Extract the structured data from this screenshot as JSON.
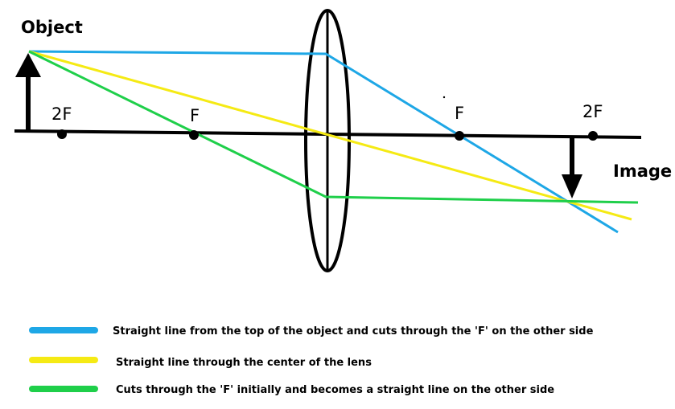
{
  "labels": {
    "object": "Object",
    "image": "Image",
    "focal_left": "F",
    "double_focal_left": "2F",
    "focal_right": "F",
    "double_focal_right": "2F"
  },
  "colors": {
    "axis": "#000000",
    "lens": "#000000",
    "ray_parallel": "#1ea7e6",
    "ray_center": "#f5ea14",
    "ray_focal": "#1fcf4a"
  },
  "legend": [
    {
      "color": "#1ea7e6",
      "text": "Straight line from the top of the object and cuts through the 'F' on the other side"
    },
    {
      "color": "#f5ea14",
      "text": "Straight line through the center of the lens"
    },
    {
      "color": "#1fcf4a",
      "text": "Cuts through the 'F' initially and becomes a straight line on the other side"
    }
  ]
}
